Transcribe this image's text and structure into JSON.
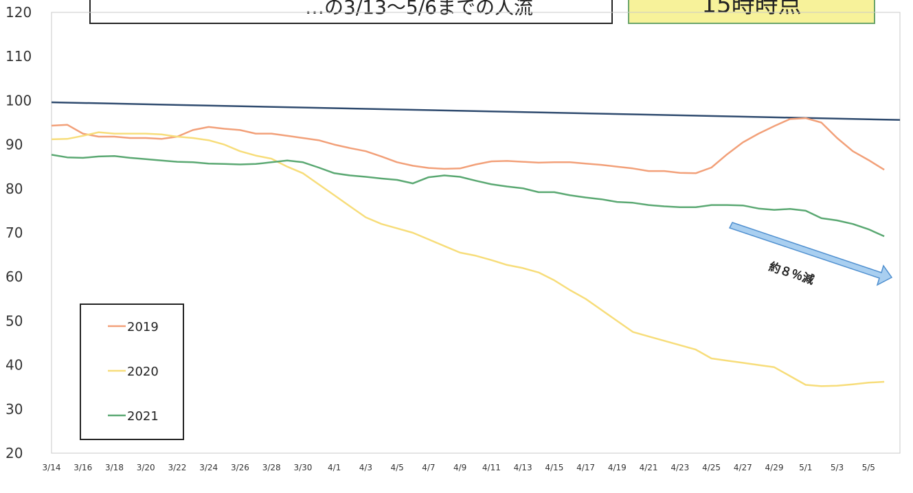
{
  "header": {
    "title": "…の3/13～5/6までの人流",
    "note": "15時時点"
  },
  "annotation": {
    "text": "約８％減",
    "color": "#a9cff0"
  },
  "chart_data": {
    "type": "line",
    "title": "",
    "xlabel": "",
    "ylabel": "",
    "ylim": [
      20,
      120
    ],
    "yticks": [
      20,
      30,
      40,
      50,
      60,
      70,
      80,
      90,
      100,
      110,
      120
    ],
    "xlim": [
      0,
      54
    ],
    "xticks": [
      {
        "i": 0,
        "label": "3/14"
      },
      {
        "i": 2,
        "label": "3/16"
      },
      {
        "i": 4,
        "label": "3/18"
      },
      {
        "i": 6,
        "label": "3/20"
      },
      {
        "i": 8,
        "label": "3/22"
      },
      {
        "i": 10,
        "label": "3/24"
      },
      {
        "i": 12,
        "label": "3/26"
      },
      {
        "i": 14,
        "label": "3/28"
      },
      {
        "i": 16,
        "label": "3/30"
      },
      {
        "i": 18,
        "label": "4/1"
      },
      {
        "i": 20,
        "label": "4/3"
      },
      {
        "i": 22,
        "label": "4/5"
      },
      {
        "i": 24,
        "label": "4/7"
      },
      {
        "i": 26,
        "label": "4/9"
      },
      {
        "i": 28,
        "label": "4/11"
      },
      {
        "i": 30,
        "label": "4/13"
      },
      {
        "i": 32,
        "label": "4/15"
      },
      {
        "i": 34,
        "label": "4/17"
      },
      {
        "i": 36,
        "label": "4/19"
      },
      {
        "i": 38,
        "label": "4/21"
      },
      {
        "i": 40,
        "label": "4/23"
      },
      {
        "i": 42,
        "label": "4/25"
      },
      {
        "i": 44,
        "label": "4/27"
      },
      {
        "i": 46,
        "label": "4/29"
      },
      {
        "i": 48,
        "label": "5/1"
      },
      {
        "i": 50,
        "label": "5/3"
      },
      {
        "i": 52,
        "label": "5/5"
      }
    ],
    "reference_line": {
      "values": [
        [
          0,
          99.6
        ],
        [
          54,
          95.6
        ]
      ],
      "color": "#2e4a6e"
    },
    "legend": "left-bottom",
    "series": [
      {
        "name": "2019",
        "color": "#f2a079",
        "values": [
          [
            0,
            94.3
          ],
          [
            1,
            94.5
          ],
          [
            2,
            92.5
          ],
          [
            3,
            91.8
          ],
          [
            4,
            91.8
          ],
          [
            5,
            91.5
          ],
          [
            6,
            91.5
          ],
          [
            7,
            91.3
          ],
          [
            8,
            91.8
          ],
          [
            9,
            93.3
          ],
          [
            10,
            94.0
          ],
          [
            11,
            93.6
          ],
          [
            12,
            93.3
          ],
          [
            13,
            92.5
          ],
          [
            14,
            92.5
          ],
          [
            15,
            92.0
          ],
          [
            16,
            91.5
          ],
          [
            17,
            91.0
          ],
          [
            18,
            90.0
          ],
          [
            19,
            89.2
          ],
          [
            20,
            88.5
          ],
          [
            21,
            87.3
          ],
          [
            22,
            86.0
          ],
          [
            23,
            85.2
          ],
          [
            24,
            84.7
          ],
          [
            25,
            84.5
          ],
          [
            26,
            84.6
          ],
          [
            27,
            85.5
          ],
          [
            28,
            86.2
          ],
          [
            29,
            86.3
          ],
          [
            30,
            86.1
          ],
          [
            31,
            85.9
          ],
          [
            32,
            86.0
          ],
          [
            33,
            86.0
          ],
          [
            34,
            85.7
          ],
          [
            35,
            85.4
          ],
          [
            36,
            85.0
          ],
          [
            37,
            84.6
          ],
          [
            38,
            84.0
          ],
          [
            39,
            84.0
          ],
          [
            40,
            83.6
          ],
          [
            41,
            83.5
          ],
          [
            42,
            84.8
          ],
          [
            43,
            87.8
          ],
          [
            44,
            90.5
          ],
          [
            45,
            92.5
          ],
          [
            46,
            94.2
          ],
          [
            47,
            95.8
          ],
          [
            48,
            96.0
          ],
          [
            49,
            95.0
          ],
          [
            50,
            91.5
          ],
          [
            51,
            88.5
          ],
          [
            52,
            86.5
          ],
          [
            53,
            84.3
          ]
        ]
      },
      {
        "name": "2020",
        "color": "#f7dd7a",
        "values": [
          [
            0,
            91.2
          ],
          [
            1,
            91.3
          ],
          [
            2,
            92.0
          ],
          [
            3,
            92.8
          ],
          [
            4,
            92.5
          ],
          [
            5,
            92.5
          ],
          [
            6,
            92.5
          ],
          [
            7,
            92.3
          ],
          [
            8,
            91.8
          ],
          [
            9,
            91.5
          ],
          [
            10,
            91.0
          ],
          [
            11,
            90.0
          ],
          [
            12,
            88.5
          ],
          [
            13,
            87.5
          ],
          [
            14,
            86.8
          ],
          [
            15,
            85.0
          ],
          [
            16,
            83.5
          ],
          [
            17,
            81.0
          ],
          [
            18,
            78.5
          ],
          [
            19,
            76.0
          ],
          [
            20,
            73.5
          ],
          [
            21,
            72.0
          ],
          [
            22,
            71.0
          ],
          [
            23,
            70.0
          ],
          [
            24,
            68.5
          ],
          [
            25,
            67.0
          ],
          [
            26,
            65.5
          ],
          [
            27,
            64.8
          ],
          [
            28,
            63.8
          ],
          [
            29,
            62.7
          ],
          [
            30,
            62.0
          ],
          [
            31,
            61.0
          ],
          [
            32,
            59.2
          ],
          [
            33,
            57.0
          ],
          [
            34,
            55.0
          ],
          [
            35,
            52.5
          ],
          [
            36,
            50.0
          ],
          [
            37,
            47.5
          ],
          [
            38,
            46.5
          ],
          [
            39,
            45.5
          ],
          [
            40,
            44.5
          ],
          [
            41,
            43.5
          ],
          [
            42,
            41.5
          ],
          [
            43,
            41.0
          ],
          [
            44,
            40.5
          ],
          [
            45,
            40.0
          ],
          [
            46,
            39.5
          ],
          [
            47,
            37.5
          ],
          [
            48,
            35.5
          ],
          [
            49,
            35.2
          ],
          [
            50,
            35.3
          ],
          [
            51,
            35.6
          ],
          [
            52,
            36.0
          ],
          [
            53,
            36.2
          ]
        ]
      },
      {
        "name": "2021",
        "color": "#5aa872",
        "values": [
          [
            0,
            87.7
          ],
          [
            1,
            87.1
          ],
          [
            2,
            87.0
          ],
          [
            3,
            87.3
          ],
          [
            4,
            87.4
          ],
          [
            5,
            87.0
          ],
          [
            6,
            86.7
          ],
          [
            7,
            86.4
          ],
          [
            8,
            86.1
          ],
          [
            9,
            86.0
          ],
          [
            10,
            85.7
          ],
          [
            11,
            85.6
          ],
          [
            12,
            85.5
          ],
          [
            13,
            85.6
          ],
          [
            14,
            86.0
          ],
          [
            15,
            86.4
          ],
          [
            16,
            86.0
          ],
          [
            17,
            84.8
          ],
          [
            18,
            83.5
          ],
          [
            19,
            83.0
          ],
          [
            20,
            82.7
          ],
          [
            21,
            82.3
          ],
          [
            22,
            82.0
          ],
          [
            23,
            81.2
          ],
          [
            24,
            82.6
          ],
          [
            25,
            83.0
          ],
          [
            26,
            82.7
          ],
          [
            27,
            81.8
          ],
          [
            28,
            81.0
          ],
          [
            29,
            80.5
          ],
          [
            30,
            80.1
          ],
          [
            31,
            79.2
          ],
          [
            32,
            79.2
          ],
          [
            33,
            78.5
          ],
          [
            34,
            78.0
          ],
          [
            35,
            77.6
          ],
          [
            36,
            77.0
          ],
          [
            37,
            76.8
          ],
          [
            38,
            76.3
          ],
          [
            39,
            76.0
          ],
          [
            40,
            75.8
          ],
          [
            41,
            75.8
          ],
          [
            42,
            76.3
          ],
          [
            43,
            76.3
          ],
          [
            44,
            76.2
          ],
          [
            45,
            75.5
          ],
          [
            46,
            75.2
          ],
          [
            47,
            75.4
          ],
          [
            48,
            75.0
          ],
          [
            49,
            73.3
          ],
          [
            50,
            72.8
          ],
          [
            51,
            72.0
          ],
          [
            52,
            70.8
          ],
          [
            53,
            69.2
          ]
        ]
      }
    ]
  }
}
